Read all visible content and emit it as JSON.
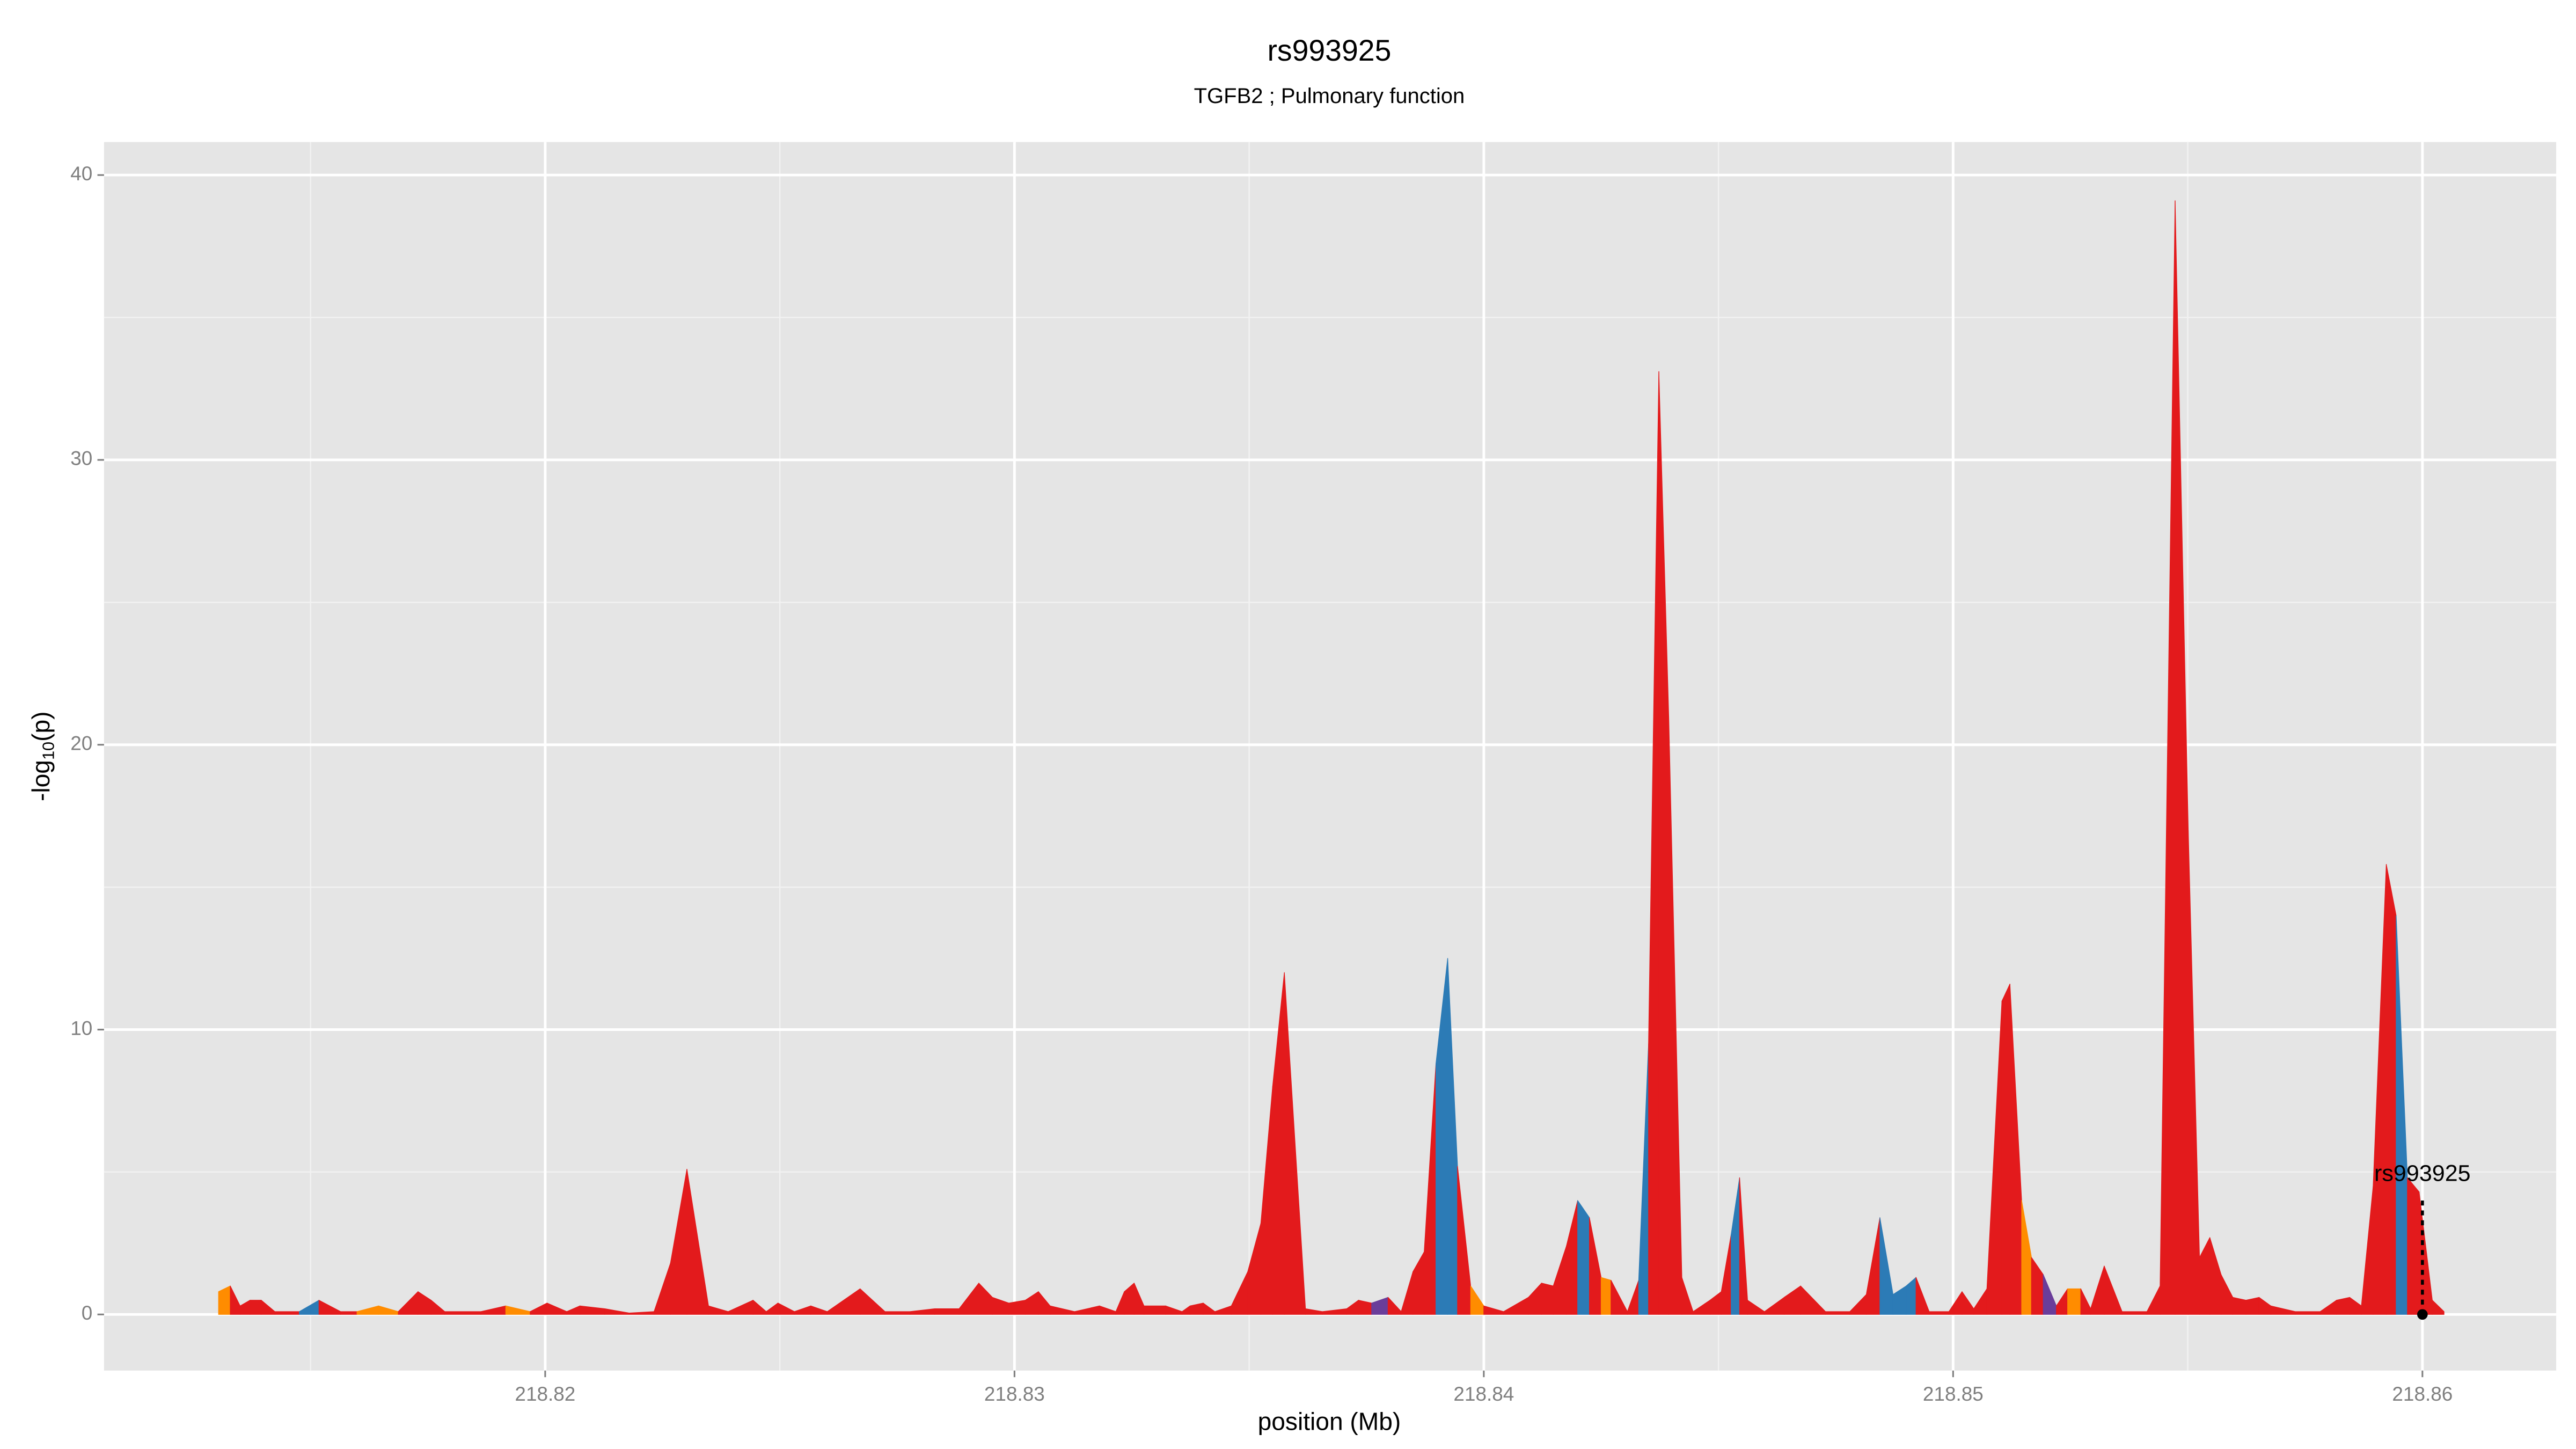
{
  "chart_data": {
    "type": "area",
    "title": "rs993925",
    "subtitle": "TGFB2 ; Pulmonary function",
    "x_label": "position (Mb)",
    "y_label": {
      "main": "-log",
      "sub": "10",
      "tail": "(p)"
    },
    "x": [
      218.81304,
      218.81329,
      218.8135,
      218.81371,
      218.81395,
      218.81424,
      218.81476,
      218.81518,
      218.81564,
      218.81599,
      218.81645,
      218.81687,
      218.81729,
      218.81757,
      218.81786,
      218.81863,
      218.81916,
      218.81968,
      218.82004,
      218.82046,
      218.82074,
      218.82127,
      218.82179,
      218.82232,
      218.82267,
      218.82302,
      218.82348,
      218.8239,
      218.82443,
      218.82471,
      218.82496,
      218.82531,
      218.82566,
      218.82601,
      218.82671,
      218.82724,
      218.82777,
      218.8283,
      218.82882,
      218.82924,
      218.82953,
      218.82988,
      218.83023,
      218.83051,
      218.83076,
      218.83128,
      218.83181,
      218.83216,
      218.83234,
      218.83255,
      218.83276,
      218.83322,
      218.83357,
      218.83374,
      218.83402,
      218.83427,
      218.83462,
      218.83497,
      218.83525,
      218.8355,
      218.83575,
      218.8362,
      218.83656,
      218.83708,
      218.83733,
      218.83761,
      218.83796,
      218.83824,
      218.83849,
      218.83873,
      218.83898,
      218.83923,
      218.83944,
      218.83972,
      218.84,
      218.84042,
      218.84095,
      218.84123,
      218.84148,
      218.84176,
      218.842,
      218.84225,
      218.8425,
      218.84271,
      218.84306,
      218.8433,
      218.84351,
      218.84373,
      218.84394,
      218.84422,
      218.84446,
      218.84482,
      218.84506,
      218.84527,
      218.84545,
      218.84562,
      218.84598,
      218.8464,
      218.84675,
      218.84728,
      218.8478,
      218.84815,
      218.84844,
      218.84872,
      218.849,
      218.84921,
      218.84949,
      218.84991,
      218.85019,
      218.85044,
      218.85072,
      218.85104,
      218.85121,
      218.85146,
      218.85167,
      218.85192,
      218.8522,
      218.85244,
      218.85272,
      218.85293,
      218.85322,
      218.8536,
      218.85413,
      218.85441,
      218.85473,
      218.85501,
      218.85525,
      218.85547,
      218.85571,
      218.85596,
      218.85624,
      218.85652,
      218.85677,
      218.85729,
      218.85782,
      218.85817,
      218.85845,
      218.8587,
      218.85895,
      218.85923,
      218.85944,
      218.85968,
      218.85993,
      218.86021,
      218.86046
    ],
    "values": [
      0.8,
      1.0,
      0.3,
      0.5,
      0.5,
      0.1,
      0.1,
      0.5,
      0.1,
      0.1,
      0.3,
      0.1,
      0.8,
      0.5,
      0.1,
      0.1,
      0.3,
      0.1,
      0.4,
      0.1,
      0.3,
      0.2,
      0.05,
      0.1,
      1.8,
      5.1,
      0.3,
      0.1,
      0.5,
      0.1,
      0.4,
      0.1,
      0.3,
      0.1,
      0.9,
      0.1,
      0.1,
      0.2,
      0.2,
      1.1,
      0.6,
      0.4,
      0.5,
      0.8,
      0.3,
      0.1,
      0.3,
      0.1,
      0.8,
      1.1,
      0.3,
      0.3,
      0.1,
      0.3,
      0.4,
      0.1,
      0.3,
      1.5,
      3.2,
      8.0,
      12.0,
      0.2,
      0.1,
      0.2,
      0.5,
      0.4,
      0.6,
      0.1,
      1.5,
      2.2,
      8.8,
      12.5,
      5.2,
      1.0,
      0.3,
      0.1,
      0.6,
      1.1,
      1.0,
      2.4,
      4.0,
      3.4,
      1.3,
      1.2,
      0.1,
      1.2,
      9.5,
      33.1,
      21,
      1.3,
      0.1,
      0.5,
      0.8,
      2.8,
      4.8,
      0.5,
      0.1,
      0.6,
      1.0,
      0.1,
      0.1,
      0.7,
      3.4,
      0.7,
      1.0,
      1.3,
      0.1,
      0.1,
      0.8,
      0.2,
      0.9,
      11.0,
      11.6,
      4.0,
      2.0,
      1.4,
      0.3,
      0.9,
      0.9,
      0.2,
      1.7,
      0.1,
      0.1,
      1.0,
      39.1,
      17,
      2.0,
      2.7,
      1.4,
      0.6,
      0.5,
      0.6,
      0.3,
      0.1,
      0.1,
      0.5,
      0.6,
      0.3,
      4.5,
      15.8,
      14,
      4.8,
      4.3,
      0.5,
      0.1
    ],
    "colors": [
      "#ff8c00",
      "#e31a1c",
      "#e31a1c",
      "#e31a1c",
      "#e31a1c",
      "#e31a1c",
      "#2c7bb6",
      "#e31a1c",
      "#e31a1c",
      "#ff8c00",
      "#ff8c00",
      "#e31a1c",
      "#e31a1c",
      "#e31a1c",
      "#e31a1c",
      "#e31a1c",
      "#ff8c00",
      "#e31a1c",
      "#e31a1c",
      "#e31a1c",
      "#e31a1c",
      "#e31a1c",
      "#e31a1c",
      "#e31a1c",
      "#e31a1c",
      "#e31a1c",
      "#e31a1c",
      "#e31a1c",
      "#e31a1c",
      "#e31a1c",
      "#e31a1c",
      "#e31a1c",
      "#e31a1c",
      "#e31a1c",
      "#e31a1c",
      "#e31a1c",
      "#e31a1c",
      "#e31a1c",
      "#e31a1c",
      "#e31a1c",
      "#e31a1c",
      "#e31a1c",
      "#e31a1c",
      "#e31a1c",
      "#e31a1c",
      "#e31a1c",
      "#e31a1c",
      "#e31a1c",
      "#e31a1c",
      "#e31a1c",
      "#e31a1c",
      "#e31a1c",
      "#e31a1c",
      "#e31a1c",
      "#e31a1c",
      "#e31a1c",
      "#e31a1c",
      "#e31a1c",
      "#e31a1c",
      "#e31a1c",
      "#e31a1c",
      "#e31a1c",
      "#e31a1c",
      "#e31a1c",
      "#e31a1c",
      "#6a3d9a",
      "#e31a1c",
      "#e31a1c",
      "#e31a1c",
      "#e31a1c",
      "#2c7bb6",
      "#2c7bb6",
      "#e31a1c",
      "#ff8c00",
      "#e31a1c",
      "#e31a1c",
      "#e31a1c",
      "#e31a1c",
      "#e31a1c",
      "#e31a1c",
      "#2c7bb6",
      "#e31a1c",
      "#ff8c00",
      "#e31a1c",
      "#e31a1c",
      "#2c7bb6",
      "#e31a1c",
      "#e31a1c",
      "#e31a1c",
      "#e31a1c",
      "#e31a1c",
      "#e31a1c",
      "#e31a1c",
      "#2c7bb6",
      "#e31a1c",
      "#e31a1c",
      "#e31a1c",
      "#e31a1c",
      "#e31a1c",
      "#e31a1c",
      "#e31a1c",
      "#e31a1c",
      "#2c7bb6",
      "#2c7bb6",
      "#2c7bb6",
      "#e31a1c",
      "#e31a1c",
      "#e31a1c",
      "#e31a1c",
      "#e31a1c",
      "#e31a1c",
      "#e31a1c",
      "#e31a1c",
      "#ff8c00",
      "#e31a1c",
      "#6a3d9a",
      "#e31a1c",
      "#ff8c00",
      "#e31a1c",
      "#e31a1c",
      "#e31a1c",
      "#e31a1c",
      "#e31a1c",
      "#e31a1c",
      "#e31a1c",
      "#e31a1c",
      "#e31a1c",
      "#e31a1c",
      "#e31a1c",
      "#e31a1c",
      "#e31a1c",
      "#e31a1c",
      "#e31a1c",
      "#e31a1c",
      "#e31a1c",
      "#e31a1c",
      "#e31a1c",
      "#e31a1c",
      "#e31a1c",
      "#e31a1c",
      "#2c7bb6",
      "#e31a1c",
      "#e31a1c",
      "#e31a1c",
      "#e31a1c",
      "#e31a1c"
    ],
    "xlim": [
      218.8106,
      218.86285
    ],
    "ylim": [
      -1.97,
      41.16
    ],
    "xticks": [
      218.82,
      218.83,
      218.84,
      218.85,
      218.86
    ],
    "x_minor_ticks": [
      218.815,
      218.825,
      218.835,
      218.845,
      218.855
    ],
    "yticks": [
      0,
      10,
      20,
      30,
      40
    ],
    "y_minor_ticks": [
      5,
      15,
      25,
      35
    ],
    "grid": true,
    "annotation": {
      "text": "rs993925",
      "x": 218.86,
      "y": 0,
      "y_label": 4.9
    }
  }
}
